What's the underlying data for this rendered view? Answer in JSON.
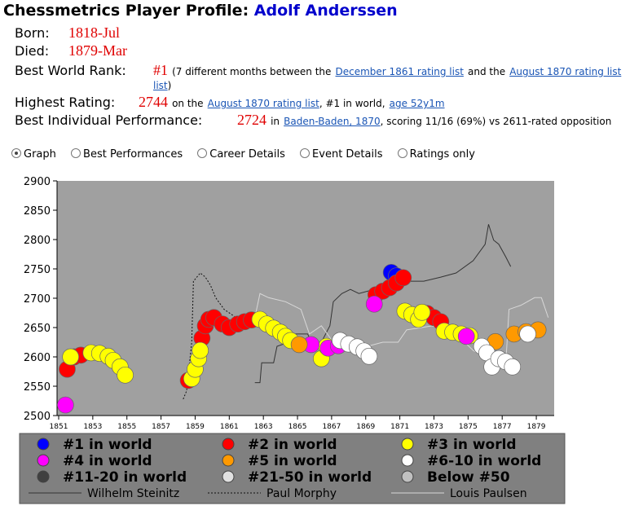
{
  "header": {
    "title": "Chessmetrics Player Profile:",
    "name": "Adolf Anderssen"
  },
  "profile": {
    "born_label": "Born:",
    "born": "1818-Jul",
    "died_label": "Died:",
    "died": "1879-Mar",
    "rank_label": "Best World Rank:",
    "rank": "#1",
    "rank_note_1": "(7 different months between the",
    "rank_link_1": "December 1861 rating list",
    "rank_note_2": "and the",
    "rank_link_2": "August 1870 rating list",
    "rank_note_3": ")",
    "rating_label": "Highest Rating:",
    "rating": "2744",
    "rating_note_1": "on the",
    "rating_link": "August 1870 rating list",
    "rating_note_2": ", #1 in world,",
    "rating_age": "age 52y1m",
    "perf_label": "Best Individual Performance:",
    "perf": "2724",
    "perf_note_1": "in",
    "perf_link": "Baden-Baden, 1870",
    "perf_note_2": ", scoring 11/16 (69%) vs 2611-rated opposition"
  },
  "tabs": [
    "Graph",
    "Best Performances",
    "Career Details",
    "Event Details",
    "Ratings only"
  ],
  "chart_data": {
    "type": "scatter",
    "xlim": [
      1851,
      1880
    ],
    "xticks": [
      1851,
      1853,
      1855,
      1857,
      1859,
      1861,
      1863,
      1865,
      1867,
      1869,
      1871,
      1873,
      1875,
      1877,
      1879
    ],
    "ylim": [
      2500,
      2900
    ],
    "yticks": [
      2500,
      2550,
      2600,
      2650,
      2700,
      2750,
      2800,
      2850,
      2900
    ],
    "series": [
      {
        "name": "Wilhelm Steinitz",
        "mode": "lines",
        "dash": "solid",
        "color": "#333333",
        "x": [
          1862.5,
          1862.8,
          1862.9,
          1863.6,
          1863.8,
          1864.5,
          1864.8,
          1865.6,
          1866.0,
          1866.4,
          1866.9,
          1867.1,
          1867.6,
          1868.1,
          1868.6,
          1869.5,
          1870.0,
          1870.5,
          1871.2,
          1872.4,
          1873.4,
          1874.3,
          1875.3,
          1876.0,
          1876.2,
          1876.5,
          1876.8,
          1877.2,
          1877.5
        ],
        "values": [
          2556,
          2556,
          2590,
          2590,
          2618,
          2625,
          2639,
          2639,
          2611,
          2625,
          2653,
          2694,
          2708,
          2715,
          2708,
          2715,
          2708,
          2743,
          2729,
          2729,
          2736,
          2743,
          2764,
          2792,
          2826,
          2799,
          2792,
          2771,
          2754
        ]
      },
      {
        "name": "Paul Morphy",
        "mode": "lines",
        "dash": "dotted",
        "color": "#111111",
        "x": [
          1858.3,
          1858.5,
          1858.8,
          1858.9,
          1859.3,
          1859.6,
          1859.9,
          1860.2,
          1860.7,
          1861.4
        ],
        "values": [
          2528,
          2542,
          2625,
          2729,
          2743,
          2736,
          2722,
          2701,
          2681,
          2667
        ]
      },
      {
        "name": "Louis Paulsen",
        "mode": "lines",
        "dash": "solid",
        "color": "#d8d8d8",
        "x": [
          1862.4,
          1862.8,
          1863.3,
          1864.3,
          1865.2,
          1865.7,
          1866.4,
          1867.1,
          1868.1,
          1869.1,
          1870.0,
          1870.9,
          1871.4,
          1872.9,
          1874.3,
          1875.3,
          1876.2,
          1877.2,
          1877.4,
          1878.1,
          1878.9,
          1879.3,
          1879.7
        ],
        "values": [
          2653,
          2708,
          2701,
          2694,
          2681,
          2639,
          2653,
          2625,
          2611,
          2618,
          2625,
          2625,
          2646,
          2653,
          2639,
          2611,
          2597,
          2583,
          2681,
          2688,
          2701,
          2701,
          2667
        ]
      },
      {
        "name": "#1 in world",
        "mode": "markers",
        "color": "#0000ff",
        "x": [
          1870.5,
          1870.8
        ],
        "values": [
          2744,
          2738
        ]
      },
      {
        "name": "#2 in world",
        "mode": "markers",
        "color": "#ff0000",
        "x": [
          1851.5,
          1851.9,
          1852.3,
          1858.6,
          1859.4,
          1859.6,
          1859.8,
          1860.1,
          1860.6,
          1861.0,
          1861.5,
          1861.9,
          1862.3,
          1869.6,
          1870.0,
          1870.4,
          1870.8,
          1871.2,
          1872.6,
          1873.0,
          1873.4
        ],
        "values": [
          2579,
          2600,
          2603,
          2560,
          2632,
          2653,
          2664,
          2667,
          2656,
          2650,
          2656,
          2660,
          2663,
          2706,
          2712,
          2718,
          2726,
          2735,
          2674,
          2667,
          2660
        ]
      },
      {
        "name": "#3 in world",
        "mode": "markers",
        "color": "#ffff00",
        "x": [
          1851.7,
          1852.9,
          1853.4,
          1853.9,
          1854.2,
          1854.6,
          1854.9,
          1858.8,
          1859.0,
          1859.2,
          1859.3,
          1862.8,
          1863.2,
          1863.6,
          1864.0,
          1864.3,
          1864.6,
          1866.4,
          1866.7,
          1871.3,
          1871.7,
          1872.1,
          1872.3,
          1873.6,
          1874.1,
          1874.6,
          1875.1
        ],
        "values": [
          2600,
          2607,
          2606,
          2601,
          2594,
          2583,
          2569,
          2563,
          2579,
          2597,
          2611,
          2664,
          2656,
          2649,
          2642,
          2635,
          2628,
          2597,
          2618,
          2678,
          2672,
          2664,
          2676,
          2644,
          2642,
          2639,
          2636
        ]
      },
      {
        "name": "#4 in world",
        "mode": "markers",
        "color": "#ff00ff",
        "x": [
          1851.4,
          1865.8,
          1866.8,
          1867.4,
          1869.5,
          1874.9
        ],
        "values": [
          2518,
          2621,
          2615,
          2619,
          2690,
          2635
        ]
      },
      {
        "name": "#5 in world",
        "mode": "markers",
        "color": "#ff9900",
        "x": [
          1865.1,
          1876.6,
          1877.7,
          1878.4,
          1879.1
        ],
        "values": [
          2621,
          2626,
          2639,
          2643,
          2646
        ]
      },
      {
        "name": "#6-10 in world",
        "mode": "markers",
        "color": "#ffffff",
        "x": [
          1867.5,
          1868.0,
          1868.5,
          1868.9,
          1869.2,
          1875.8,
          1876.1,
          1876.4,
          1876.8,
          1877.2,
          1877.6,
          1878.5
        ],
        "values": [
          2628,
          2622,
          2617,
          2610,
          2601,
          2618,
          2607,
          2583,
          2597,
          2592,
          2583,
          2639
        ]
      },
      {
        "name": "#11-20 in world",
        "mode": "markers",
        "color": "#404040",
        "x": [],
        "values": []
      },
      {
        "name": "#21-50 in world",
        "mode": "markers",
        "color": "#e0e0e0",
        "x": [],
        "values": []
      },
      {
        "name": "Below #50",
        "mode": "markers",
        "color": "#c0c0c0",
        "x": [],
        "values": []
      }
    ]
  }
}
